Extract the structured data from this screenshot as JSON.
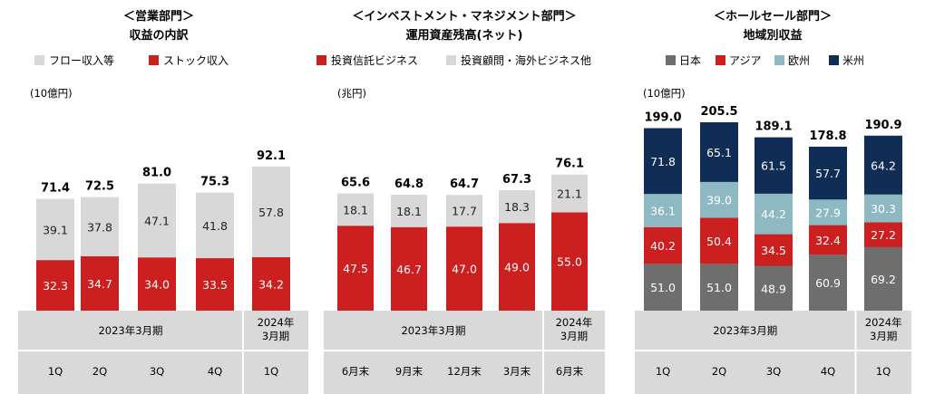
{
  "colors": {
    "red": "#cc1f1f",
    "lightgray": "#d8d8d8",
    "dark": "#6e6e6e",
    "teal": "#8fb9c2",
    "navy": "#0f2d55",
    "axis_bg": "#d9d9d9",
    "axis_line": "#ffffff"
  },
  "chart_data": [
    {
      "type": "bar",
      "stacked": true,
      "title": "＜営業部門＞",
      "subtitle": "収益の内訳",
      "unit": "(10億円)",
      "ylim": [
        0,
        100
      ],
      "legend": [
        {
          "name": "フロー収入等",
          "color": "#d8d8d8"
        },
        {
          "name": "ストック収入",
          "color": "#cc1f1f"
        }
      ],
      "series": [
        {
          "name": "ストック収入",
          "values": [
            32.3,
            34.7,
            34.0,
            33.5,
            34.2
          ],
          "color": "#cc1f1f",
          "label_color": "#ffffff"
        },
        {
          "name": "フロー収入等",
          "values": [
            39.1,
            37.8,
            47.1,
            41.8,
            57.8
          ],
          "color": "#d8d8d8",
          "label_color": "#222222"
        }
      ],
      "totals": [
        71.4,
        72.5,
        81.0,
        75.3,
        92.1
      ],
      "categories": [
        "1Q",
        "2Q",
        "3Q",
        "4Q",
        "1Q"
      ],
      "period_groups": [
        {
          "label": "2023年3月期",
          "span": 4
        },
        {
          "label": "2024年\n3月期",
          "span": 1
        }
      ]
    },
    {
      "type": "bar",
      "stacked": true,
      "title": "＜インベストメント・マネジメント部門＞",
      "subtitle": "運用資産残高(ネット)",
      "unit": "(兆円)",
      "ylim": [
        0,
        80
      ],
      "legend": [
        {
          "name": "投資信託ビジネス",
          "color": "#cc1f1f"
        },
        {
          "name": "投資顧問・海外ビジネス他",
          "color": "#d8d8d8"
        }
      ],
      "series": [
        {
          "name": "投資信託ビジネス",
          "values": [
            47.5,
            46.7,
            47.0,
            49.0,
            55.0
          ],
          "color": "#cc1f1f",
          "label_color": "#ffffff"
        },
        {
          "name": "投資顧問・海外ビジネス他",
          "values": [
            18.1,
            18.1,
            17.7,
            18.3,
            21.1
          ],
          "color": "#d8d8d8",
          "label_color": "#222222"
        }
      ],
      "totals": [
        65.6,
        64.8,
        64.7,
        67.3,
        76.1
      ],
      "categories": [
        "6月末",
        "9月末",
        "12月末",
        "3月末",
        "6月末"
      ],
      "period_groups": [
        {
          "label": "2023年3月期",
          "span": 4
        },
        {
          "label": "2024年\n3月期",
          "span": 1
        }
      ]
    },
    {
      "type": "bar",
      "stacked": true,
      "title": "＜ホールセール部門＞",
      "subtitle": "地域別収益",
      "unit": "(10億円)",
      "ylim": [
        0,
        205.5
      ],
      "legend": [
        {
          "name": "日本",
          "color": "#6e6e6e"
        },
        {
          "name": "アジア",
          "color": "#cc1f1f"
        },
        {
          "name": "欧州",
          "color": "#8fb9c2"
        },
        {
          "name": "米州",
          "color": "#0f2d55"
        }
      ],
      "series": [
        {
          "name": "日本",
          "values": [
            51.0,
            51.0,
            48.9,
            60.9,
            69.2
          ],
          "color": "#6e6e6e",
          "label_color": "#ffffff"
        },
        {
          "name": "アジア",
          "values": [
            40.2,
            50.4,
            34.5,
            32.4,
            27.2
          ],
          "color": "#cc1f1f",
          "label_color": "#ffffff"
        },
        {
          "name": "欧州",
          "values": [
            36.1,
            39.0,
            44.2,
            27.9,
            30.3
          ],
          "color": "#8fb9c2",
          "label_color": "#ffffff"
        },
        {
          "name": "米州",
          "values": [
            71.8,
            65.1,
            61.5,
            57.7,
            64.2
          ],
          "color": "#0f2d55",
          "label_color": "#ffffff"
        }
      ],
      "totals": [
        199.0,
        205.5,
        189.1,
        178.8,
        190.9
      ],
      "categories": [
        "1Q",
        "2Q",
        "3Q",
        "4Q",
        "1Q"
      ],
      "period_groups": [
        {
          "label": "2023年3月期",
          "span": 4
        },
        {
          "label": "2024年\n3月期",
          "span": 1
        }
      ]
    }
  ]
}
